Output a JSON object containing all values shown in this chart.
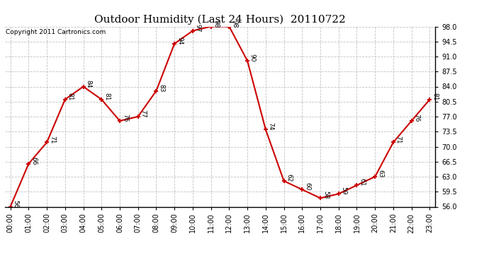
{
  "title": "Outdoor Humidity (Last 24 Hours)  20110722",
  "copyright": "Copyright 2011 Cartronics.com",
  "hours": [
    "00:00",
    "01:00",
    "02:00",
    "03:00",
    "04:00",
    "05:00",
    "06:00",
    "07:00",
    "08:00",
    "09:00",
    "10:00",
    "11:00",
    "12:00",
    "13:00",
    "14:00",
    "15:00",
    "16:00",
    "17:00",
    "18:00",
    "19:00",
    "20:00",
    "21:00",
    "22:00",
    "23:00"
  ],
  "values": [
    56,
    66,
    71,
    81,
    84,
    81,
    76,
    77,
    83,
    94,
    97,
    98,
    98,
    90,
    74,
    62,
    60,
    58,
    59,
    61,
    63,
    71,
    76,
    81
  ],
  "ylim_min": 56.0,
  "ylim_max": 98.0,
  "yticks": [
    56.0,
    59.5,
    63.0,
    66.5,
    70.0,
    73.5,
    77.0,
    80.5,
    84.0,
    87.5,
    91.0,
    94.5,
    98.0
  ],
  "line_color": "#cc0000",
  "marker_color": "#cc0000",
  "bg_color": "#ffffff",
  "grid_color": "#bbbbbb",
  "title_fontsize": 11,
  "label_fontsize": 6.5,
  "tick_fontsize": 7,
  "copyright_fontsize": 6.5
}
